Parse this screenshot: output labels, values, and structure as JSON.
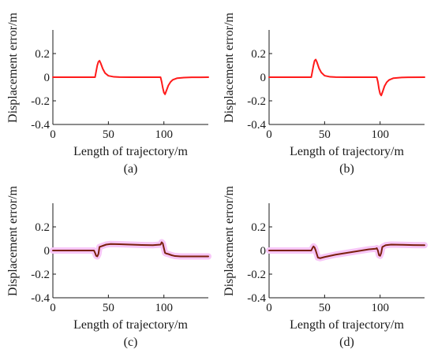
{
  "figure": {
    "background": "#ffffff",
    "text_color": "#1a1a1a"
  },
  "chart_data": [
    {
      "type": "line",
      "panel_label": "(a)",
      "xlabel": "Length of trajectory/m",
      "ylabel": "Displacement error/m",
      "xlim": [
        0,
        140
      ],
      "ylim": [
        -0.4,
        0.4
      ],
      "xticks": [
        0,
        50,
        100
      ],
      "yticks": [
        0.2,
        0,
        -0.2,
        -0.4
      ],
      "xtick_labels": [
        "0",
        "50",
        "100"
      ],
      "ytick_labels": [
        "0.2",
        "0",
        "-0.2",
        "-0.4"
      ],
      "grid": false,
      "series": [
        {
          "color": "#ff1a1a",
          "line_width": 2,
          "x": [
            0,
            38,
            39,
            40,
            41,
            42,
            43,
            45,
            47,
            50,
            55,
            60,
            70,
            80,
            90,
            97,
            98,
            99,
            100,
            101,
            102,
            104,
            106,
            108,
            112,
            118,
            125,
            140
          ],
          "y": [
            0,
            0,
            0.05,
            0.1,
            0.13,
            0.14,
            0.12,
            0.07,
            0.035,
            0.012,
            0.003,
            0.001,
            0,
            0,
            0,
            0,
            -0.04,
            -0.09,
            -0.13,
            -0.145,
            -0.12,
            -0.07,
            -0.04,
            -0.022,
            -0.008,
            -0.003,
            -0.001,
            0
          ]
        }
      ]
    },
    {
      "type": "line",
      "panel_label": "(b)",
      "xlabel": "Length of trajectory/m",
      "ylabel": "Displacement error/m",
      "xlim": [
        0,
        140
      ],
      "ylim": [
        -0.4,
        0.4
      ],
      "xticks": [
        0,
        50,
        100
      ],
      "yticks": [
        0.2,
        0,
        -0.2,
        -0.4
      ],
      "xtick_labels": [
        "0",
        "50",
        "100"
      ],
      "ytick_labels": [
        "0.2",
        "0",
        "-0.2",
        "-0.4"
      ],
      "grid": false,
      "series": [
        {
          "color": "#ff1a1a",
          "line_width": 2,
          "x": [
            0,
            38,
            39,
            40,
            41,
            42,
            43,
            45,
            47,
            50,
            55,
            60,
            70,
            80,
            90,
            97,
            98,
            99,
            100,
            101,
            102,
            104,
            106,
            108,
            112,
            118,
            125,
            140
          ],
          "y": [
            0,
            0,
            0.05,
            0.1,
            0.14,
            0.15,
            0.13,
            0.075,
            0.04,
            0.013,
            0.003,
            0.001,
            0,
            0,
            0,
            0,
            -0.04,
            -0.1,
            -0.14,
            -0.155,
            -0.13,
            -0.075,
            -0.042,
            -0.024,
            -0.008,
            -0.003,
            -0.001,
            0
          ]
        }
      ]
    },
    {
      "type": "line",
      "panel_label": "(c)",
      "xlabel": "Length of trajectory/m",
      "ylabel": "Displacement error/m",
      "xlim": [
        0,
        140
      ],
      "ylim": [
        -0.4,
        0.4
      ],
      "xticks": [
        0,
        50,
        100
      ],
      "yticks": [
        0.2,
        0,
        -0.2,
        -0.4
      ],
      "xtick_labels": [
        "0",
        "50",
        "100"
      ],
      "ytick_labels": [
        "0.2",
        "0",
        "-0.2",
        "-0.4"
      ],
      "grid": false,
      "series": [
        {
          "color": "#f7c6f7",
          "line_width": 8,
          "x": [
            0,
            37,
            38,
            39,
            40,
            41,
            42,
            45,
            48,
            52,
            60,
            70,
            80,
            90,
            97,
            98,
            99,
            100,
            101,
            102,
            104,
            107,
            110,
            115,
            120,
            130,
            140
          ],
          "y": [
            0,
            0,
            -0.02,
            -0.045,
            -0.05,
            -0.03,
            0.03,
            0.04,
            0.05,
            0.055,
            0.053,
            0.05,
            0.047,
            0.045,
            0.05,
            0.07,
            0.06,
            0.02,
            -0.02,
            -0.025,
            -0.03,
            -0.04,
            -0.047,
            -0.05,
            -0.05,
            -0.05,
            -0.05
          ]
        },
        {
          "color": "#7a1f0d",
          "line_width": 2,
          "x": [
            0,
            37,
            38,
            39,
            40,
            41,
            42,
            45,
            48,
            52,
            60,
            70,
            80,
            90,
            97,
            98,
            99,
            100,
            101,
            102,
            104,
            107,
            110,
            115,
            120,
            130,
            140
          ],
          "y": [
            0,
            0,
            -0.02,
            -0.045,
            -0.05,
            -0.03,
            0.03,
            0.04,
            0.05,
            0.055,
            0.053,
            0.05,
            0.047,
            0.045,
            0.05,
            0.07,
            0.06,
            0.02,
            -0.02,
            -0.025,
            -0.03,
            -0.04,
            -0.047,
            -0.05,
            -0.05,
            -0.05,
            -0.05
          ]
        }
      ]
    },
    {
      "type": "line",
      "panel_label": "(d)",
      "xlabel": "Length of trajectory/m",
      "ylabel": "Displacement error/m",
      "xlim": [
        0,
        140
      ],
      "ylim": [
        -0.4,
        0.4
      ],
      "xticks": [
        0,
        50,
        100
      ],
      "yticks": [
        0.2,
        0,
        -0.2,
        -0.4
      ],
      "xtick_labels": [
        "0",
        "50",
        "100"
      ],
      "ytick_labels": [
        "0.2",
        "0",
        "-0.2",
        "-0.4"
      ],
      "grid": false,
      "series": [
        {
          "color": "#f7c6f7",
          "line_width": 8,
          "x": [
            0,
            38,
            39,
            40,
            41,
            42,
            43,
            44,
            46,
            50,
            60,
            70,
            80,
            90,
            96,
            97,
            98,
            99,
            100,
            101,
            102,
            105,
            110,
            120,
            130,
            140
          ],
          "y": [
            0,
            0,
            0.02,
            0.035,
            0.025,
            0,
            -0.03,
            -0.06,
            -0.065,
            -0.055,
            -0.035,
            -0.02,
            -0.005,
            0.01,
            0.015,
            0.02,
            0,
            -0.04,
            -0.045,
            -0.02,
            0.03,
            0.045,
            0.05,
            0.048,
            0.046,
            0.045
          ]
        },
        {
          "color": "#7a1f0d",
          "line_width": 2,
          "x": [
            0,
            38,
            39,
            40,
            41,
            42,
            43,
            44,
            46,
            50,
            60,
            70,
            80,
            90,
            96,
            97,
            98,
            99,
            100,
            101,
            102,
            105,
            110,
            120,
            130,
            140
          ],
          "y": [
            0,
            0,
            0.02,
            0.035,
            0.025,
            0,
            -0.03,
            -0.06,
            -0.065,
            -0.055,
            -0.035,
            -0.02,
            -0.005,
            0.01,
            0.015,
            0.02,
            0,
            -0.04,
            -0.045,
            -0.02,
            0.03,
            0.045,
            0.05,
            0.048,
            0.046,
            0.045
          ]
        }
      ]
    }
  ]
}
